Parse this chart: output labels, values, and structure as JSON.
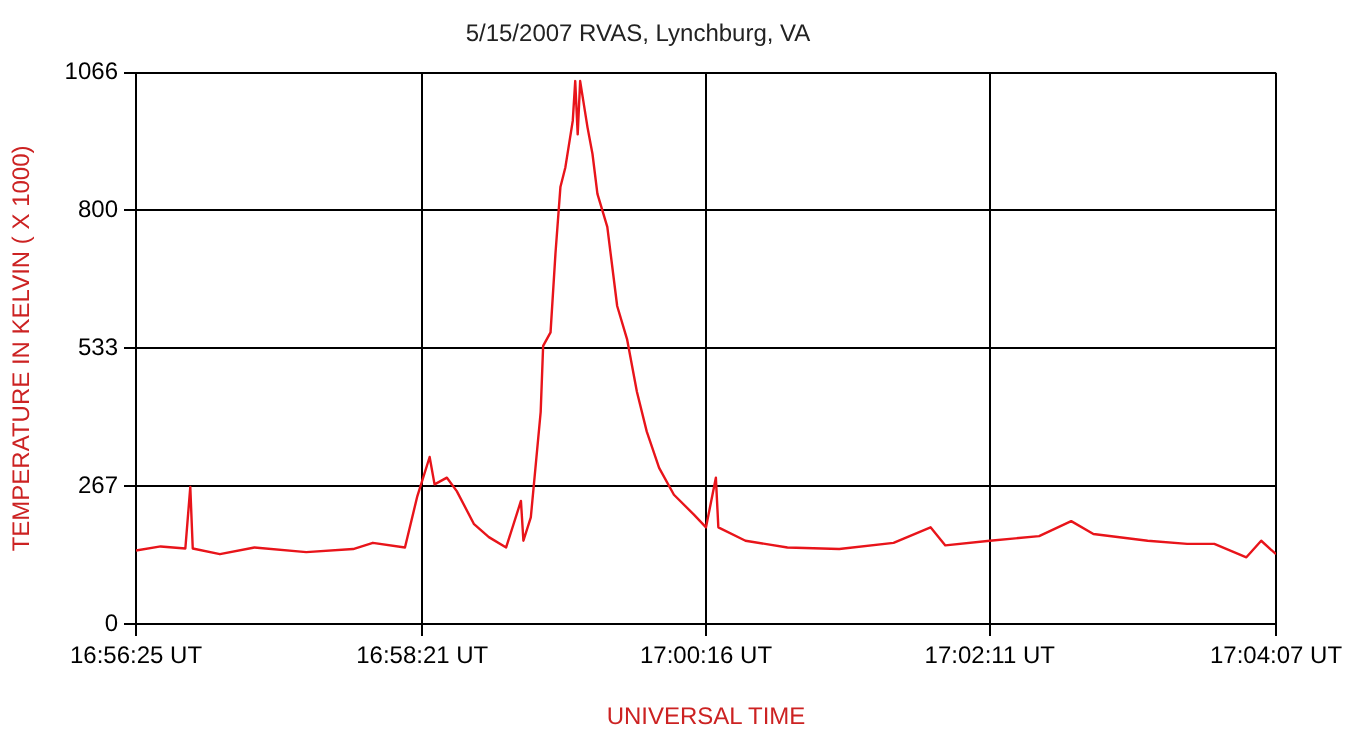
{
  "chart_data": {
    "type": "line",
    "title": "5/15/2007 RVAS, Lynchburg, VA",
    "xlabel": "UNIVERSAL TIME",
    "ylabel": "TEMPERATURE IN KELVIN ( X 1000)",
    "xlim": [
      "2007-05-15T16:56:25",
      "2007-05-15T17:04:07"
    ],
    "xticks": [
      {
        "value": "2007-05-15T16:56:25",
        "label": "16:56:25 UT"
      },
      {
        "value": "2007-05-15T16:58:21",
        "label": "16:58:21 UT"
      },
      {
        "value": "2007-05-15T17:00:16",
        "label": "17:00:16 UT"
      },
      {
        "value": "2007-05-15T17:02:11",
        "label": "17:02:11 UT"
      },
      {
        "value": "2007-05-15T17:04:07",
        "label": "17:04:07 UT"
      }
    ],
    "ylim": [
      0,
      1066
    ],
    "yticks": [
      0,
      267,
      533,
      800,
      1066
    ],
    "grid": true,
    "legend": false,
    "marker": "none",
    "line_style": "solid",
    "x": [
      "2007-05-15T16:56:25",
      "2007-05-15T16:56:35",
      "2007-05-15T16:56:45",
      "2007-05-15T16:56:47",
      "2007-05-15T16:56:48",
      "2007-05-15T16:56:59",
      "2007-05-15T16:57:13",
      "2007-05-15T16:57:34",
      "2007-05-15T16:57:53",
      "2007-05-15T16:58:01",
      "2007-05-15T16:58:14",
      "2007-05-15T16:58:19",
      "2007-05-15T16:58:24",
      "2007-05-15T16:58:26",
      "2007-05-15T16:58:31",
      "2007-05-15T16:58:35",
      "2007-05-15T16:58:42",
      "2007-05-15T16:58:48",
      "2007-05-15T16:58:55",
      "2007-05-15T16:59:01",
      "2007-05-15T16:59:02",
      "2007-05-15T16:59:05",
      "2007-05-15T16:59:07",
      "2007-05-15T16:59:09",
      "2007-05-15T16:59:10",
      "2007-05-15T16:59:13",
      "2007-05-15T16:59:15",
      "2007-05-15T16:59:17",
      "2007-05-15T16:59:19",
      "2007-05-15T16:59:22",
      "2007-05-15T16:59:23",
      "2007-05-15T16:59:24",
      "2007-05-15T16:59:25",
      "2007-05-15T16:59:28",
      "2007-05-15T16:59:30",
      "2007-05-15T16:59:32",
      "2007-05-15T16:59:36",
      "2007-05-15T16:59:40",
      "2007-05-15T16:59:44",
      "2007-05-15T16:59:48",
      "2007-05-15T16:59:52",
      "2007-05-15T16:59:57",
      "2007-05-15T17:00:03",
      "2007-05-15T17:00:11",
      "2007-05-15T17:00:16",
      "2007-05-15T17:00:20",
      "2007-05-15T17:00:21",
      "2007-05-15T17:00:32",
      "2007-05-15T17:00:49",
      "2007-05-15T17:01:10",
      "2007-05-15T17:01:32",
      "2007-05-15T17:01:47",
      "2007-05-15T17:01:53",
      "2007-05-15T17:02:11",
      "2007-05-15T17:02:31",
      "2007-05-15T17:02:44",
      "2007-05-15T17:02:53",
      "2007-05-15T17:03:15",
      "2007-05-15T17:03:31",
      "2007-05-15T17:03:42",
      "2007-05-15T17:03:55",
      "2007-05-15T17:04:01",
      "2007-05-15T17:04:07"
    ],
    "series": [
      {
        "color": "#e8141a",
        "values": [
          142,
          150,
          146,
          265,
          146,
          135,
          148,
          139,
          145,
          157,
          148,
          247,
          323,
          270,
          283,
          257,
          193,
          168,
          148,
          238,
          161,
          206,
          308,
          410,
          538,
          564,
          717,
          845,
          883,
          973,
          1050,
          947,
          1050,
          960,
          909,
          832,
          768,
          615,
          551,
          449,
          372,
          302,
          250,
          212,
          187,
          283,
          187,
          161,
          148,
          145,
          157,
          187,
          152,
          161,
          170,
          199,
          174,
          161,
          155,
          155,
          129,
          161,
          135
        ]
      }
    ]
  }
}
